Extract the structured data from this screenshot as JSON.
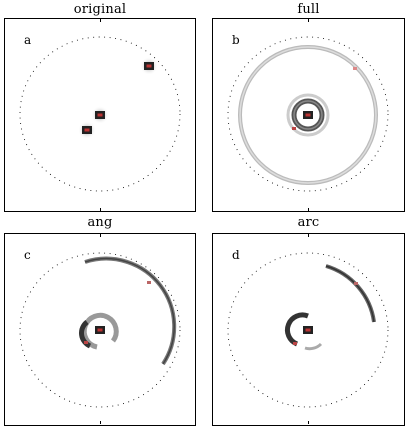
{
  "panels": [
    {
      "title": "original",
      "label": "a"
    },
    {
      "title": "full",
      "label": "b"
    },
    {
      "title": "ang",
      "label": "c"
    },
    {
      "title": "arc",
      "label": "d"
    }
  ]
}
